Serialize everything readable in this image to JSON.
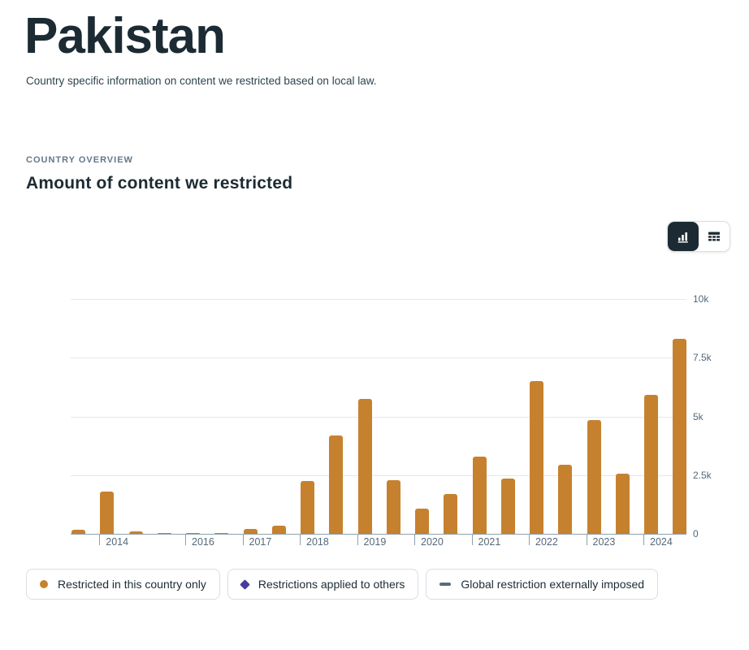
{
  "page": {
    "title": "Pakistan",
    "subtitle": "Country specific information on content we restricted based on local law."
  },
  "section": {
    "eyebrow": "COUNTRY OVERVIEW",
    "heading": "Amount of content we restricted"
  },
  "view_toggle": {
    "options": [
      {
        "name": "chart-view",
        "icon": "bar-chart-icon",
        "selected": true
      },
      {
        "name": "table-view",
        "icon": "table-icon",
        "selected": false
      }
    ]
  },
  "chart_data": {
    "type": "bar",
    "title": "Amount of content we restricted",
    "grid": true,
    "ylim": [
      0,
      10000
    ],
    "y_ticks": [
      {
        "value": 0,
        "label": "0"
      },
      {
        "value": 2500,
        "label": "2.5k"
      },
      {
        "value": 5000,
        "label": "5k"
      },
      {
        "value": 7500,
        "label": "7.5k"
      },
      {
        "value": 10000,
        "label": "10k"
      }
    ],
    "x_year_ticks": [
      {
        "label": "2014",
        "slot": 1
      },
      {
        "label": "2016",
        "slot": 4
      },
      {
        "label": "2017",
        "slot": 6
      },
      {
        "label": "2018",
        "slot": 8
      },
      {
        "label": "2019",
        "slot": 10
      },
      {
        "label": "2020",
        "slot": 12
      },
      {
        "label": "2021",
        "slot": 14
      },
      {
        "label": "2022",
        "slot": 16
      },
      {
        "label": "2023",
        "slot": 18
      },
      {
        "label": "2024",
        "slot": 20
      }
    ],
    "series": [
      {
        "name": "Restricted in this country only",
        "color": "#c6812f",
        "points": [
          {
            "period": "2013 Jul-Dec",
            "slot": 0,
            "value": 190
          },
          {
            "period": "2014 Jan-Jun",
            "slot": 1,
            "value": 1800
          },
          {
            "period": "2014 Jul-Dec",
            "slot": 2,
            "value": 100
          },
          {
            "period": "2015",
            "slot": 3,
            "value": 25
          },
          {
            "period": "2016 Jan-Jun",
            "slot": 4,
            "value": 40
          },
          {
            "period": "2016 Jul-Dec",
            "slot": 5,
            "value": 25
          },
          {
            "period": "2017 Jan-Jun",
            "slot": 6,
            "value": 220
          },
          {
            "period": "2017 Jul-Dec",
            "slot": 7,
            "value": 350
          },
          {
            "period": "2018 Jan-Jun",
            "slot": 8,
            "value": 2250
          },
          {
            "period": "2018 Jul-Dec",
            "slot": 9,
            "value": 4200
          },
          {
            "period": "2019 Jan-Jun",
            "slot": 10,
            "value": 5750
          },
          {
            "period": "2019 Jul-Dec",
            "slot": 11,
            "value": 2300
          },
          {
            "period": "2020 Jan-Jun",
            "slot": 12,
            "value": 1070
          },
          {
            "period": "2020 Jul-Dec",
            "slot": 13,
            "value": 1690
          },
          {
            "period": "2021 Jan-Jun",
            "slot": 14,
            "value": 3300
          },
          {
            "period": "2021 Jul-Dec",
            "slot": 15,
            "value": 2350
          },
          {
            "period": "2022 Jan-Jun",
            "slot": 16,
            "value": 6500
          },
          {
            "period": "2022 Jul-Dec",
            "slot": 17,
            "value": 2950
          },
          {
            "period": "2023 Jan-Jun",
            "slot": 18,
            "value": 4850
          },
          {
            "period": "2023 Jul-Dec",
            "slot": 19,
            "value": 2550
          },
          {
            "period": "2024 Jan-Jun",
            "slot": 20,
            "value": 5900
          },
          {
            "period": "2024 Jul-Dec",
            "slot": 21,
            "value": 8300
          }
        ]
      }
    ],
    "legend": [
      {
        "label": "Restricted in this country only",
        "marker": "circle",
        "color": "#c6812f"
      },
      {
        "label": "Restrictions applied to others",
        "marker": "diamond",
        "color": "#463a9e"
      },
      {
        "label": "Global restriction externally imposed",
        "marker": "dash",
        "color": "#5c6b78"
      }
    ],
    "colors": {
      "bar": "#c6812f",
      "grid": "#e4e8ec",
      "axis": "#8fa1ad",
      "tick_label": "#546879"
    }
  }
}
